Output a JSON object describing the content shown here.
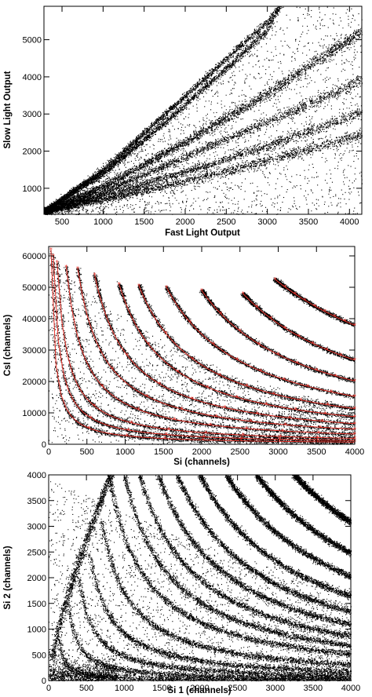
{
  "chart_data": [
    {
      "type": "scatter",
      "title": "",
      "xlabel": "Fast Light Output",
      "ylabel": "Slow Light Output",
      "xlim": [
        280,
        4150
      ],
      "ylim": [
        300,
        5900
      ],
      "xticks": [
        500,
        1000,
        1500,
        2000,
        2500,
        3000,
        3500,
        4000
      ],
      "yticks": [
        1000,
        2000,
        3000,
        4000,
        5000
      ],
      "grid": false,
      "legend": "none",
      "point_color": "#000000",
      "bands": [
        {
          "points": [
            [
              300,
              430
            ],
            [
              1000,
              1500
            ],
            [
              2000,
              3500
            ],
            [
              3000,
              5500
            ],
            [
              3150,
              5900
            ]
          ]
        },
        {
          "points": [
            [
              300,
              420
            ],
            [
              1000,
              1400
            ],
            [
              2000,
              3250
            ],
            [
              3000,
              5250
            ],
            [
              3100,
              5700
            ]
          ]
        },
        {
          "points": [
            [
              300,
              410
            ],
            [
              1000,
              1050
            ],
            [
              2000,
              2250
            ],
            [
              3000,
              3550
            ],
            [
              4150,
              5250
            ]
          ]
        },
        {
          "points": [
            [
              300,
              400
            ],
            [
              1000,
              900
            ],
            [
              2000,
              1850
            ],
            [
              3000,
              2800
            ],
            [
              4150,
              3900
            ]
          ]
        },
        {
          "points": [
            [
              300,
              390
            ],
            [
              1000,
              800
            ],
            [
              2000,
              1450
            ],
            [
              3000,
              2150
            ],
            [
              4150,
              3050
            ]
          ]
        },
        {
          "points": [
            [
              300,
              380
            ],
            [
              1000,
              700
            ],
            [
              2000,
              1200
            ],
            [
              3000,
              1750
            ],
            [
              4150,
              2450
            ]
          ]
        }
      ]
    },
    {
      "type": "scatter",
      "title": "",
      "xlabel": "Si (channels)",
      "ylabel": "CsI (channels)",
      "xlim": [
        0,
        4000
      ],
      "ylim": [
        0,
        63000
      ],
      "xticks": [
        0,
        500,
        1000,
        1500,
        2000,
        2500,
        3000,
        3500,
        4000
      ],
      "yticks": [
        0,
        10000,
        20000,
        30000,
        40000,
        50000,
        60000
      ],
      "grid": false,
      "legend": "none",
      "point_color": "#000000",
      "fit_color": "#e8322a",
      "curves": [
        {
          "start": [
            30,
            62000
          ],
          "k": 45
        },
        {
          "start": [
            60,
            60000
          ],
          "k": 80
        },
        {
          "start": [
            110,
            58000
          ],
          "k": 130
        },
        {
          "start": [
            230,
            56500
          ],
          "k": 230
        },
        {
          "start": [
            380,
            56000
          ],
          "k": 340
        },
        {
          "start": [
            600,
            54000
          ],
          "k": 470
        },
        {
          "start": [
            920,
            51000
          ],
          "k": 640
        },
        {
          "start": [
            1180,
            50500
          ],
          "k": 820
        },
        {
          "start": [
            1540,
            50000
          ],
          "k": 1080
        },
        {
          "start": [
            2000,
            49000
          ],
          "k": 1400
        },
        {
          "start": [
            2540,
            48000
          ],
          "k": 1850
        },
        {
          "start": [
            2960,
            52500
          ],
          "k": 2700
        }
      ]
    },
    {
      "type": "scatter",
      "title": "",
      "xlabel": "Si 1 (channels)",
      "ylabel": "Si 2 (channels)",
      "xlim": [
        0,
        4000
      ],
      "ylim": [
        0,
        4000
      ],
      "xticks": [
        0,
        500,
        1000,
        1500,
        2000,
        2500,
        3000,
        3500,
        4000
      ],
      "yticks": [
        0,
        500,
        1000,
        1500,
        2000,
        2500,
        3000,
        3500,
        4000
      ],
      "grid": false,
      "legend": "none",
      "point_color": "#000000",
      "bands": [
        {
          "start": [
            130,
            900
          ],
          "k": 60
        },
        {
          "start": [
            260,
            1500
          ],
          "k": 120
        },
        {
          "start": [
            400,
            2000
          ],
          "k": 190
        },
        {
          "start": [
            540,
            2500
          ],
          "k": 270
        },
        {
          "start": [
            700,
            3100
          ],
          "k": 370
        },
        {
          "start": [
            800,
            4000
          ],
          "k": 480
        },
        {
          "start": [
            1000,
            4000
          ],
          "k": 620
        },
        {
          "start": [
            1200,
            4000
          ],
          "k": 780
        },
        {
          "start": [
            1450,
            4000
          ],
          "k": 960
        },
        {
          "start": [
            1700,
            4000
          ],
          "k": 1160
        },
        {
          "start": [
            2000,
            4000
          ],
          "k": 1400
        },
        {
          "start": [
            2350,
            4000
          ],
          "k": 1700
        },
        {
          "start": [
            2750,
            4000
          ],
          "k": 2050
        },
        {
          "start": [
            3250,
            4000
          ],
          "k": 2500
        }
      ]
    }
  ]
}
